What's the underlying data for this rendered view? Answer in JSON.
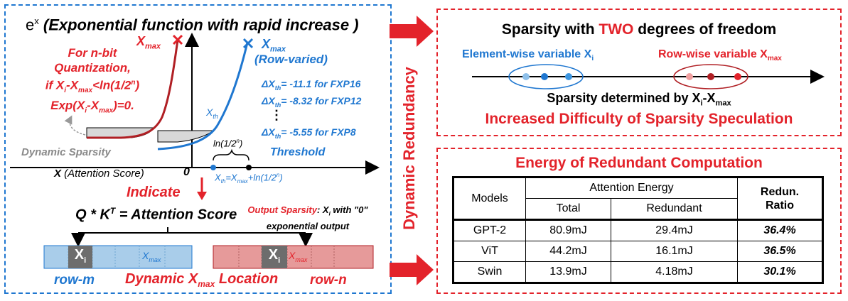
{
  "left": {
    "title_base": "e",
    "title_sup": "x",
    "title_rest": " (Exponential function with rapid increase )",
    "xmax_red": "X",
    "xmax_sub": "max",
    "xmax_blue": "X",
    "xmax_blue_sub": "max",
    "row_varied": "(Row-varied)",
    "quant": {
      "l1": "For n-bit",
      "l2": "Quantization,",
      "l3a": "if X",
      "l3b": "i",
      "l3c": "-X",
      "l3d": "max",
      "l3e": "<ln(1/2",
      "l3f": "n",
      "l3g": ")",
      "l4a": "Exp(X",
      "l4b": "i",
      "l4c": "-X",
      "l4d": "max",
      "l4e": ")=0."
    },
    "xth": "X",
    "xth_sub": "th",
    "deltas": [
      {
        "pre": "ΔX",
        "sub": "th",
        "val": "= -11.1 for FXP16"
      },
      {
        "pre": "ΔX",
        "sub": "th",
        "val": "= -8.32 for FXP12"
      },
      {
        "pre": "ΔX",
        "sub": "th",
        "val": "= -5.55 for FXP8"
      }
    ],
    "dots": "⋮",
    "ln_label_a": "ln(1/2",
    "ln_label_b": "n",
    "ln_label_c": ")",
    "dynamic_sparsity": "Dynamic Sparsity",
    "threshold": "Threshold",
    "x_axis_a": "X",
    "x_axis_b": " (Attention Score)",
    "zero": "0",
    "formula": {
      "a": "X",
      "b": "th",
      "c": "=X",
      "d": "max",
      "e": "+ln(1/2",
      "f": "n",
      "g": ")"
    },
    "indicate": "Indicate",
    "qk_a": "Q * K",
    "qk_b": "T",
    "qk_c": " = Attention Score",
    "out_a": "Output Sparsity",
    "out_b": ": X",
    "out_c": "i",
    "out_d": " with \"0\"",
    "out_e": "exponential output",
    "xi": "X",
    "xi_sub": "i",
    "row_xmax": "X",
    "row_xmax_sub": "max",
    "row_m": "row-m",
    "row_n": "row-n",
    "dyn_loc_a": "Dynamic X",
    "dyn_loc_b": "max",
    "dyn_loc_c": " Location"
  },
  "middle": {
    "label": "Dynamic Redundancy"
  },
  "top_right": {
    "title_a": "Sparsity with ",
    "title_b": "TWO",
    "title_c": " degrees of freedom",
    "elem_a": "Element-wise variable X",
    "elem_b": "i",
    "row_a": "Row-wise variable X",
    "row_b": "max",
    "det_a": "Sparsity determined by X",
    "det_b": "i",
    "det_c": "-X",
    "det_d": "max",
    "difficulty": "Increased Difficulty of Sparsity Speculation"
  },
  "bottom_right": {
    "title": "Energy of Redundant Computation",
    "headers": {
      "models": "Models",
      "attention": "Attention Energy",
      "total": "Total",
      "redundant": "Redundant",
      "ratio_a": "Redun.",
      "ratio_b": "Ratio"
    },
    "rows": [
      {
        "model": "GPT-2",
        "total": "80.9mJ",
        "redundant": "29.4mJ",
        "ratio": "36.4%"
      },
      {
        "model": "ViT",
        "total": "44.2mJ",
        "redundant": "16.1mJ",
        "ratio": "36.5%"
      },
      {
        "model": "Swin",
        "total": "13.9mJ",
        "redundant": "4.18mJ",
        "ratio": "30.1%"
      }
    ]
  },
  "colors": {
    "red": "#e3232b",
    "blue": "#1f77d0",
    "dark_red": "#b01f24",
    "light_blue_fill": "#a9cdea",
    "light_red_fill": "#e69a9a"
  }
}
